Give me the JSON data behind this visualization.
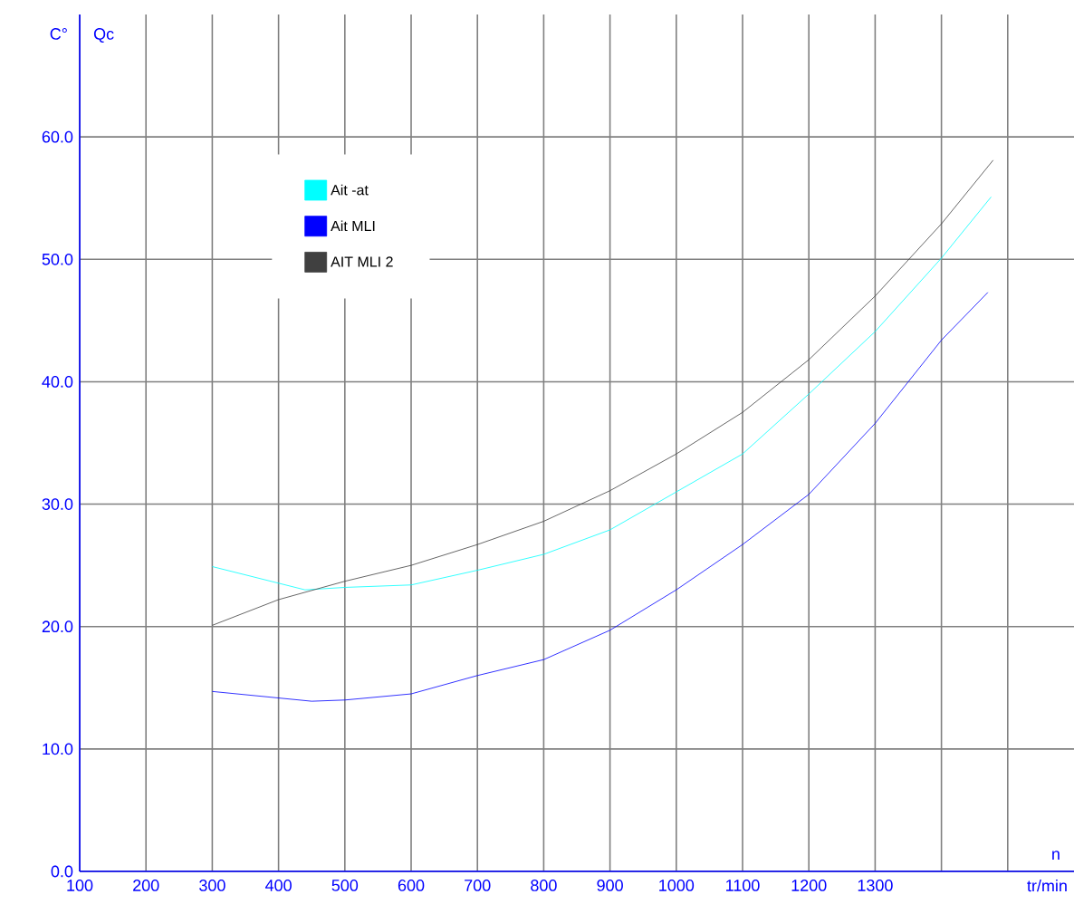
{
  "chart_data": {
    "type": "line",
    "ylabel": "C°",
    "xlabel": "tr/min",
    "annotations": [
      "Qc",
      "n"
    ],
    "xlim": [
      100,
      1600
    ],
    "ylim": [
      0,
      70
    ],
    "xticks": [
      100,
      200,
      300,
      400,
      500,
      600,
      700,
      800,
      900,
      1000,
      1100,
      1200,
      1300,
      {
        "value": 1400,
        "label": null
      },
      {
        "value": 1500,
        "label": null
      }
    ],
    "yticks": [
      {
        "value": 0,
        "label": "0.0"
      },
      {
        "value": 10,
        "label": "10.0"
      },
      {
        "value": 20,
        "label": "20.0"
      },
      {
        "value": 30,
        "label": "30.0"
      },
      {
        "value": 40,
        "label": "40.0"
      },
      {
        "value": 50,
        "label": "50.0"
      },
      {
        "value": 60,
        "label": "60.0"
      }
    ],
    "grid": true,
    "legend": "top left",
    "series": [
      {
        "name": "Ait -at",
        "color": "#00ffff",
        "x": [
          300,
          440,
          500,
          600,
          700,
          800,
          900,
          1000,
          1100,
          1200,
          1300,
          1400,
          1475
        ],
        "values": [
          24.9,
          23.0,
          23.2,
          23.4,
          24.6,
          25.9,
          27.9,
          31.0,
          34.1,
          39.0,
          44.1,
          50.1,
          55.1
        ]
      },
      {
        "name": "Ait MLI",
        "color": "#0000ff",
        "x": [
          300,
          450,
          500,
          600,
          700,
          800,
          900,
          1000,
          1100,
          1200,
          1300,
          1400,
          1470
        ],
        "values": [
          14.7,
          13.9,
          14.0,
          14.5,
          16.0,
          17.3,
          19.7,
          23.0,
          26.7,
          30.8,
          36.6,
          43.4,
          47.3
        ]
      },
      {
        "name": "AIT MLI 2",
        "color": "#404040",
        "x": [
          300,
          400,
          500,
          600,
          700,
          800,
          900,
          1000,
          1100,
          1200,
          1300,
          1400,
          1478
        ],
        "values": [
          20.1,
          22.2,
          23.7,
          25.0,
          26.7,
          28.6,
          31.1,
          34.1,
          37.5,
          41.8,
          47.0,
          52.9,
          58.1
        ]
      }
    ]
  }
}
